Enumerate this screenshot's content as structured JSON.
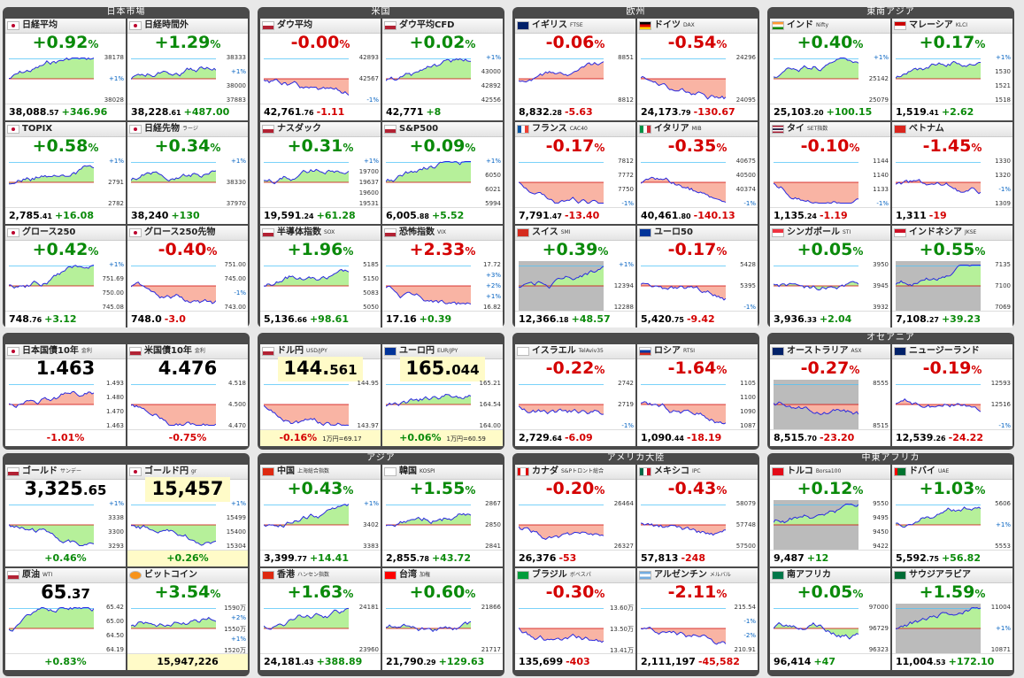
{
  "colors": {
    "up": "#0a8a0a",
    "down": "#d40000",
    "panel_bg": "#4a4a4a",
    "highlight": "#fffbc8",
    "fill_up": "#b6f09a",
    "fill_down": "#f9b4a4",
    "line": "#2a2ae0"
  },
  "panels": [
    {
      "title": "日本市場",
      "tiles": [
        {
          "name": "日経平均",
          "flag": "jp",
          "change": "+0.92",
          "dir": "up",
          "price": "38,088",
          "dec": ".57",
          "delta": "+346.96",
          "scale": [
            "38178",
            "+1%",
            "38028"
          ],
          "trend": "up"
        },
        {
          "name": "日経時間外",
          "flag": "jp",
          "change": "+1.29",
          "dir": "up",
          "price": "38,228",
          "dec": ".61",
          "delta": "+487.00",
          "scale": [
            "38333",
            "+1%",
            "38000",
            "37883"
          ],
          "trend": "up"
        },
        {
          "name": "TOPIX",
          "flag": "jp",
          "change": "+0.58",
          "dir": "up",
          "price": "2,785",
          "dec": ".41",
          "delta": "+16.08",
          "scale": [
            "+1%",
            "2791",
            "2782"
          ],
          "trend": "up"
        },
        {
          "name": "日経先物",
          "sub": "ラージ",
          "flag": "jp",
          "change": "+0.34",
          "dir": "up",
          "price": "38,240",
          "dec": "",
          "delta": "+130",
          "scale": [
            "+1%",
            "38330",
            "37970"
          ],
          "trend": "up"
        },
        {
          "name": "グロース250",
          "flag": "jp",
          "change": "+0.42",
          "dir": "up",
          "price": "748",
          "dec": ".76",
          "delta": "+3.12",
          "scale": [
            "+1%",
            "751.69",
            "750.00",
            "745.08"
          ],
          "trend": "up"
        },
        {
          "name": "グロース250先物",
          "flag": "jp",
          "change": "-0.40",
          "dir": "down",
          "price": "748.0",
          "dec": "",
          "delta": "-3.0",
          "scale": [
            "751.00",
            "745.00",
            "-1%",
            "743.00"
          ],
          "trend": "down"
        }
      ]
    },
    {
      "title": "米国",
      "tiles": [
        {
          "name": "ダウ平均",
          "flag": "us",
          "change": "-0.00",
          "dir": "down",
          "price": "42,761",
          "dec": ".76",
          "delta": "-1.11",
          "scale": [
            "42893",
            "42567",
            "-1%"
          ],
          "trend": "down"
        },
        {
          "name": "ダウ平均CFD",
          "flag": "us",
          "change": "+0.02",
          "dir": "up",
          "price": "42,771",
          "dec": "",
          "delta": "+8",
          "scale": [
            "+1%",
            "43000",
            "42892",
            "42556"
          ],
          "trend": "flat",
          "hl": true
        },
        {
          "name": "ナスダック",
          "flag": "us",
          "change": "+0.31",
          "dir": "up",
          "price": "19,591",
          "dec": ".24",
          "delta": "+61.28",
          "scale": [
            "+1%",
            "19700",
            "19637",
            "19600",
            "19531"
          ],
          "trend": "up"
        },
        {
          "name": "S&P500",
          "flag": "us",
          "change": "+0.09",
          "dir": "up",
          "price": "6,005",
          "dec": ".88",
          "delta": "+5.52",
          "scale": [
            "+1%",
            "6050",
            "6021",
            "5994"
          ],
          "trend": "up"
        },
        {
          "name": "半導体指数",
          "sub": "SOX",
          "flag": "us",
          "change": "+1.96",
          "dir": "up",
          "price": "5,136",
          "dec": ".66",
          "delta": "+98.61",
          "scale": [
            "5185",
            "5150",
            "5083",
            "5050"
          ],
          "trend": "up"
        },
        {
          "name": "恐怖指数",
          "sub": "VIX",
          "flag": "us",
          "change": "+2.33",
          "dir": "down",
          "price": "17.16",
          "dec": "",
          "delta": "+0.39",
          "scale": [
            "17.72",
            "+3%",
            "+2%",
            "+1%",
            "16.82"
          ],
          "trend": "down"
        }
      ]
    },
    {
      "title": "欧州",
      "tiles": [
        {
          "name": "イギリス",
          "sub": "FTSE",
          "flag": "uk",
          "change": "-0.06",
          "dir": "down",
          "price": "8,832",
          "dec": ".28",
          "delta": "-5.63",
          "scale": [
            "8851",
            "8812"
          ],
          "trend": "flat"
        },
        {
          "name": "ドイツ",
          "sub": "DAX",
          "flag": "de",
          "change": "-0.54",
          "dir": "down",
          "price": "24,173",
          "dec": ".79",
          "delta": "-130.67",
          "scale": [
            "24296",
            "24095"
          ],
          "trend": "down"
        },
        {
          "name": "フランス",
          "sub": "CAC40",
          "flag": "fr",
          "change": "-0.17",
          "dir": "down",
          "price": "7,791",
          "dec": ".47",
          "delta": "-13.40",
          "scale": [
            "7812",
            "7772",
            "7750",
            "-1%"
          ],
          "trend": "down"
        },
        {
          "name": "イタリア",
          "sub": "MIB",
          "flag": "it",
          "change": "-0.35",
          "dir": "down",
          "price": "40,461",
          "dec": ".80",
          "delta": "-140.13",
          "scale": [
            "40675",
            "40500",
            "40374",
            "-1%"
          ],
          "trend": "down"
        },
        {
          "name": "スイス",
          "sub": "SMI",
          "flag": "ch",
          "change": "+0.39",
          "dir": "up",
          "price": "12,366",
          "dec": ".18",
          "delta": "+48.57",
          "scale": [
            "+1%",
            "12394",
            "12288"
          ],
          "trend": "up",
          "grey": true
        },
        {
          "name": "ユーロ50",
          "flag": "eu",
          "change": "-0.17",
          "dir": "down",
          "price": "5,420",
          "dec": ".75",
          "delta": "-9.42",
          "scale": [
            "5428",
            "5395",
            "-1%"
          ],
          "trend": "down"
        }
      ]
    },
    {
      "title": "東南アジア",
      "tiles": [
        {
          "name": "インド",
          "sub": "Nifty",
          "flag": "in",
          "change": "+0.40",
          "dir": "up",
          "price": "25,103",
          "dec": ".20",
          "delta": "+100.15",
          "scale": [
            "+1%",
            "25142",
            "25079"
          ],
          "trend": "up"
        },
        {
          "name": "マレーシア",
          "sub": "KLCI",
          "flag": "my",
          "change": "+0.17",
          "dir": "up",
          "price": "1,519",
          "dec": ".41",
          "delta": "+2.62",
          "scale": [
            "+1%",
            "1530",
            "1521",
            "1518"
          ],
          "trend": "up"
        },
        {
          "name": "タイ",
          "sub": "SET指数",
          "flag": "th",
          "change": "-0.10",
          "dir": "down",
          "price": "1,135",
          "dec": ".24",
          "delta": "-1.19",
          "scale": [
            "1144",
            "1140",
            "1133",
            "-1%"
          ],
          "trend": "down"
        },
        {
          "name": "ベトナム",
          "flag": "vn",
          "change": "-1.45",
          "dir": "down",
          "price": "1,311",
          "dec": "",
          "delta": "-19",
          "scale": [
            "1330",
            "1320",
            "-1%",
            "1309"
          ],
          "trend": "down"
        },
        {
          "name": "シンガポール",
          "sub": "STI",
          "flag": "sg",
          "change": "+0.05",
          "dir": "up",
          "price": "3,936",
          "dec": ".33",
          "delta": "+2.04",
          "scale": [
            "3950",
            "3945",
            "3932"
          ],
          "trend": "flat"
        },
        {
          "name": "インドネシア",
          "sub": "JKSE",
          "flag": "id",
          "change": "+0.55",
          "dir": "up",
          "price": "7,108",
          "dec": ".27",
          "delta": "+39.23",
          "scale": [
            "7135",
            "7100",
            "7069"
          ],
          "trend": "up",
          "grey": true
        }
      ]
    },
    {
      "title": "",
      "tiles": [
        {
          "name": "日本国債10年",
          "sub": "金利",
          "flag": "jp",
          "level": "1.463",
          "lvldec": "",
          "change": "-1.01",
          "dir": "down",
          "foot_only": true,
          "scale": [
            "1.493",
            "1.480",
            "1.470",
            "1.463"
          ],
          "trend": "up"
        },
        {
          "name": "米国債10年",
          "sub": "金利",
          "flag": "us",
          "level": "4.476",
          "lvldec": "",
          "change": "-0.75",
          "dir": "down",
          "foot_only": true,
          "scale": [
            "4.518",
            "4.500",
            "4.470"
          ],
          "trend": "down"
        }
      ]
    },
    {
      "title": "",
      "tiles": [
        {
          "name": "ドル円",
          "sub": "USD/JPY",
          "flag": "us",
          "level": "144.",
          "lvldec": "561",
          "hl": true,
          "change": "-0.16",
          "dir": "down",
          "foot_only": true,
          "extra": "1万円=69.17",
          "scale": [
            "144.95",
            "143.97"
          ],
          "trend": "down"
        },
        {
          "name": "ユーロ円",
          "sub": "EUR/JPY",
          "flag": "eu",
          "level": "165.",
          "lvldec": "044",
          "hl": true,
          "change": "+0.06",
          "dir": "up",
          "foot_only": true,
          "extra": "1万円=60.59",
          "scale": [
            "165.21",
            "164.54",
            "164.00"
          ],
          "trend": "flat"
        }
      ]
    },
    {
      "title": "",
      "tiles": [
        {
          "name": "イスラエル",
          "sub": "TelAviv35",
          "flag": "il",
          "change": "-0.22",
          "dir": "down",
          "price": "2,729",
          "dec": ".64",
          "delta": "-6.09",
          "scale": [
            "2742",
            "2719",
            "-1%"
          ],
          "trend": "flat"
        },
        {
          "name": "ロシア",
          "sub": "RTSI",
          "flag": "ru",
          "change": "-1.64",
          "dir": "down",
          "price": "1,090",
          "dec": ".44",
          "delta": "-18.19",
          "scale": [
            "1105",
            "1100",
            "1090",
            "1087"
          ],
          "trend": "down"
        }
      ]
    },
    {
      "title": "オセアニア",
      "tiles": [
        {
          "name": "オーストラリア",
          "sub": "ASX",
          "flag": "au",
          "change": "-0.27",
          "dir": "down",
          "price": "8,515",
          "dec": ".70",
          "delta": "-23.20",
          "scale": [
            "8555",
            "8515"
          ],
          "trend": "down",
          "grey": true
        },
        {
          "name": "ニュージーランド",
          "flag": "nz",
          "change": "-0.19",
          "dir": "down",
          "price": "12,539",
          "dec": ".26",
          "delta": "-24.22",
          "scale": [
            "12593",
            "12516",
            "-1%"
          ],
          "trend": "flat"
        }
      ]
    },
    {
      "title": "",
      "tiles": [
        {
          "name": "ゴールド",
          "sub": "サンデー",
          "flag": "us",
          "level": "3,325",
          "lvldec": ".65",
          "change": "+0.46",
          "dir": "up",
          "foot_only": true,
          "scale": [
            "+1%",
            "3338",
            "3300",
            "3293"
          ],
          "trend": "down"
        },
        {
          "name": "ゴールド円",
          "sub": "gr",
          "flag": "jp",
          "level": "15,457",
          "lvldec": "",
          "hl": true,
          "change": "+0.26",
          "dir": "up",
          "foot_only": true,
          "scale": [
            "+1%",
            "15499",
            "15400",
            "15304"
          ],
          "trend": "down"
        },
        {
          "name": "原油",
          "sub": "WTI",
          "flag": "us",
          "level": "65",
          "lvldec": ".37",
          "change": "+0.83",
          "dir": "up",
          "foot_only": true,
          "scale": [
            "65.42",
            "65.00",
            "64.50",
            "64.19"
          ],
          "trend": "up"
        },
        {
          "name": "ビットコイン",
          "flag": "btc",
          "change": "+3.54",
          "dir": "up",
          "price": "15,947,226",
          "dec": "",
          "delta": "",
          "hlfoot": true,
          "scale": [
            "1590万",
            "+2%",
            "1550万",
            "+1%",
            "1520万"
          ],
          "trend": "up"
        }
      ]
    },
    {
      "title": "アジア",
      "tiles": [
        {
          "name": "中国",
          "sub": "上海総合指数",
          "flag": "cn",
          "change": "+0.43",
          "dir": "up",
          "price": "3,399",
          "dec": ".77",
          "delta": "+14.41",
          "scale": [
            "+1%",
            "3402",
            "3383"
          ],
          "trend": "up"
        },
        {
          "name": "韓国",
          "sub": "KOSPI",
          "flag": "kr",
          "change": "+1.55",
          "dir": "up",
          "price": "2,855",
          "dec": ".78",
          "delta": "+43.72",
          "scale": [
            "2867",
            "2850",
            "2841"
          ],
          "trend": "up"
        },
        {
          "name": "香港",
          "sub": "ハンセン指数",
          "flag": "hk",
          "change": "+1.63",
          "dir": "up",
          "price": "24,181",
          "dec": ".43",
          "delta": "+388.89",
          "scale": [
            "24181",
            "23960"
          ],
          "trend": "up"
        },
        {
          "name": "台湾",
          "sub": "加権",
          "flag": "tw",
          "change": "+0.60",
          "dir": "up",
          "price": "21,790",
          "dec": ".29",
          "delta": "+129.63",
          "scale": [
            "21866",
            "21717"
          ],
          "trend": "flat"
        }
      ]
    },
    {
      "title": "アメリカ大陸",
      "tiles": [
        {
          "name": "カナダ",
          "sub": "S&Pトロント総合",
          "flag": "ca",
          "change": "-0.20",
          "dir": "down",
          "price": "26,376",
          "dec": "",
          "delta": "-53",
          "scale": [
            "26464",
            "26327"
          ],
          "trend": "down"
        },
        {
          "name": "メキシコ",
          "sub": "IPC",
          "flag": "mx",
          "change": "-0.43",
          "dir": "down",
          "price": "57,813",
          "dec": "",
          "delta": "-248",
          "scale": [
            "58079",
            "57748",
            "57500"
          ],
          "trend": "down"
        },
        {
          "name": "ブラジル",
          "sub": "ボベスパ",
          "flag": "br",
          "change": "-0.30",
          "dir": "down",
          "price": "135,699",
          "dec": "",
          "delta": "-403",
          "scale": [
            "13.60万",
            "13.50万",
            "13.41万"
          ],
          "trend": "down"
        },
        {
          "name": "アルゼンチン",
          "sub": "メルバル",
          "flag": "ar",
          "change": "-2.11",
          "dir": "down",
          "price": "2,111,197",
          "dec": "",
          "delta": "-45,582",
          "scale": [
            "215.54",
            "-1%",
            "-2%",
            "210.91"
          ],
          "trend": "down"
        }
      ]
    },
    {
      "title": "中東アフリカ",
      "tiles": [
        {
          "name": "トルコ",
          "sub": "Borsa100",
          "flag": "tr",
          "change": "+0.12",
          "dir": "up",
          "price": "9,487",
          "dec": "",
          "delta": "+12",
          "scale": [
            "9550",
            "9495",
            "9450",
            "9422"
          ],
          "trend": "up",
          "grey": true
        },
        {
          "name": "ドバイ",
          "sub": "UAE",
          "flag": "ae",
          "change": "+1.03",
          "dir": "up",
          "price": "5,592",
          "dec": ".75",
          "delta": "+56.82",
          "scale": [
            "5606",
            "+1%",
            "5553"
          ],
          "trend": "up"
        },
        {
          "name": "南アフリカ",
          "flag": "za",
          "change": "+0.05",
          "dir": "up",
          "price": "96,414",
          "dec": "",
          "delta": "+47",
          "scale": [
            "97000",
            "96729",
            "96323"
          ],
          "trend": "flat"
        },
        {
          "name": "サウジアラビア",
          "flag": "sa",
          "change": "+1.59",
          "dir": "up",
          "price": "11,004",
          "dec": ".53",
          "delta": "+172.10",
          "scale": [
            "11004",
            "+1%",
            "10871"
          ],
          "trend": "up",
          "grey": true
        }
      ]
    }
  ]
}
